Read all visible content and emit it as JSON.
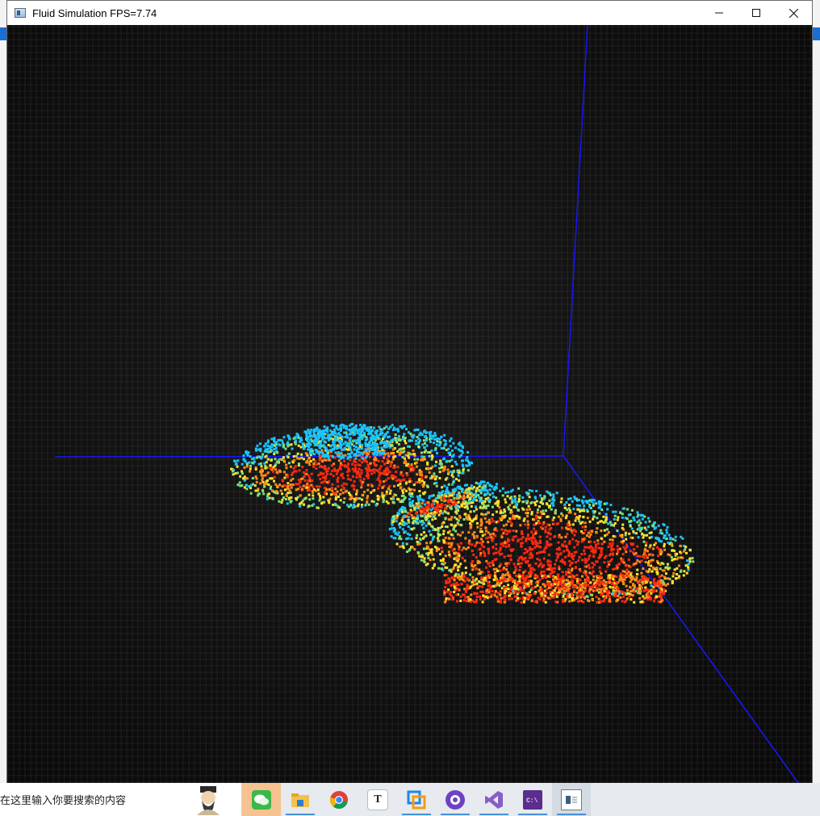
{
  "window": {
    "title": "Fluid Simulation FPS=7.74",
    "controls": [
      "minimize",
      "maximize",
      "close"
    ]
  },
  "viewport": {
    "background": "dark textured fabric",
    "axis_color": "#1a1aff",
    "particle_palette": [
      "#19c3ff",
      "#7fe07a",
      "#ffe52b",
      "#ff8a1a",
      "#ff2a10"
    ]
  },
  "taskbar": {
    "search_placeholder": "在这里输入你要搜索的内容",
    "apps": [
      {
        "name": "wechat",
        "icon": "wechat-icon",
        "active": true
      },
      {
        "name": "file-explorer",
        "icon": "folder-icon",
        "active": false
      },
      {
        "name": "chrome",
        "icon": "chrome-icon",
        "active": false
      },
      {
        "name": "typora",
        "icon": "typora-icon",
        "label": "T",
        "active": false
      },
      {
        "name": "virtualbox",
        "icon": "virtualbox-icon",
        "active": false
      },
      {
        "name": "github-desktop",
        "icon": "github-icon",
        "active": false
      },
      {
        "name": "visual-studio",
        "icon": "visual-studio-icon",
        "active": false
      },
      {
        "name": "console",
        "icon": "console-icon",
        "active": false
      },
      {
        "name": "fluid-simulation",
        "icon": "window-app-icon",
        "active": false
      }
    ]
  }
}
